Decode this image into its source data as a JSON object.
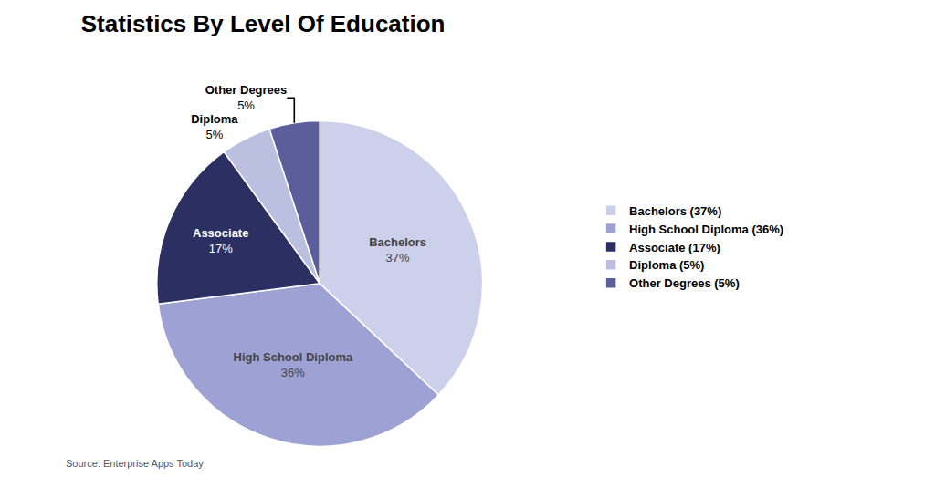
{
  "chart_data": {
    "type": "pie",
    "title": "Statistics By Level Of Education",
    "annotations": [
      "Source: Enterprise Apps Today"
    ],
    "categories": [
      "Bachelors",
      "High School Diploma",
      "Associate",
      "Diploma",
      "Other Degrees"
    ],
    "values": [
      37,
      36,
      17,
      5,
      5
    ],
    "value_labels": [
      "37%",
      "36%",
      "17%",
      "5%",
      "5%"
    ],
    "data_labels": true,
    "colors": [
      "#cdd0eb",
      "#9da1d4",
      "#2b2f62",
      "#bcc0e0",
      "#5b5e9a"
    ],
    "legend_labels": [
      "Bachelors (37%)",
      "High School Diploma (36%)",
      "Associate (17%)",
      "Diploma (5%)",
      "Other Degrees (5%)"
    ],
    "legend": "right"
  }
}
